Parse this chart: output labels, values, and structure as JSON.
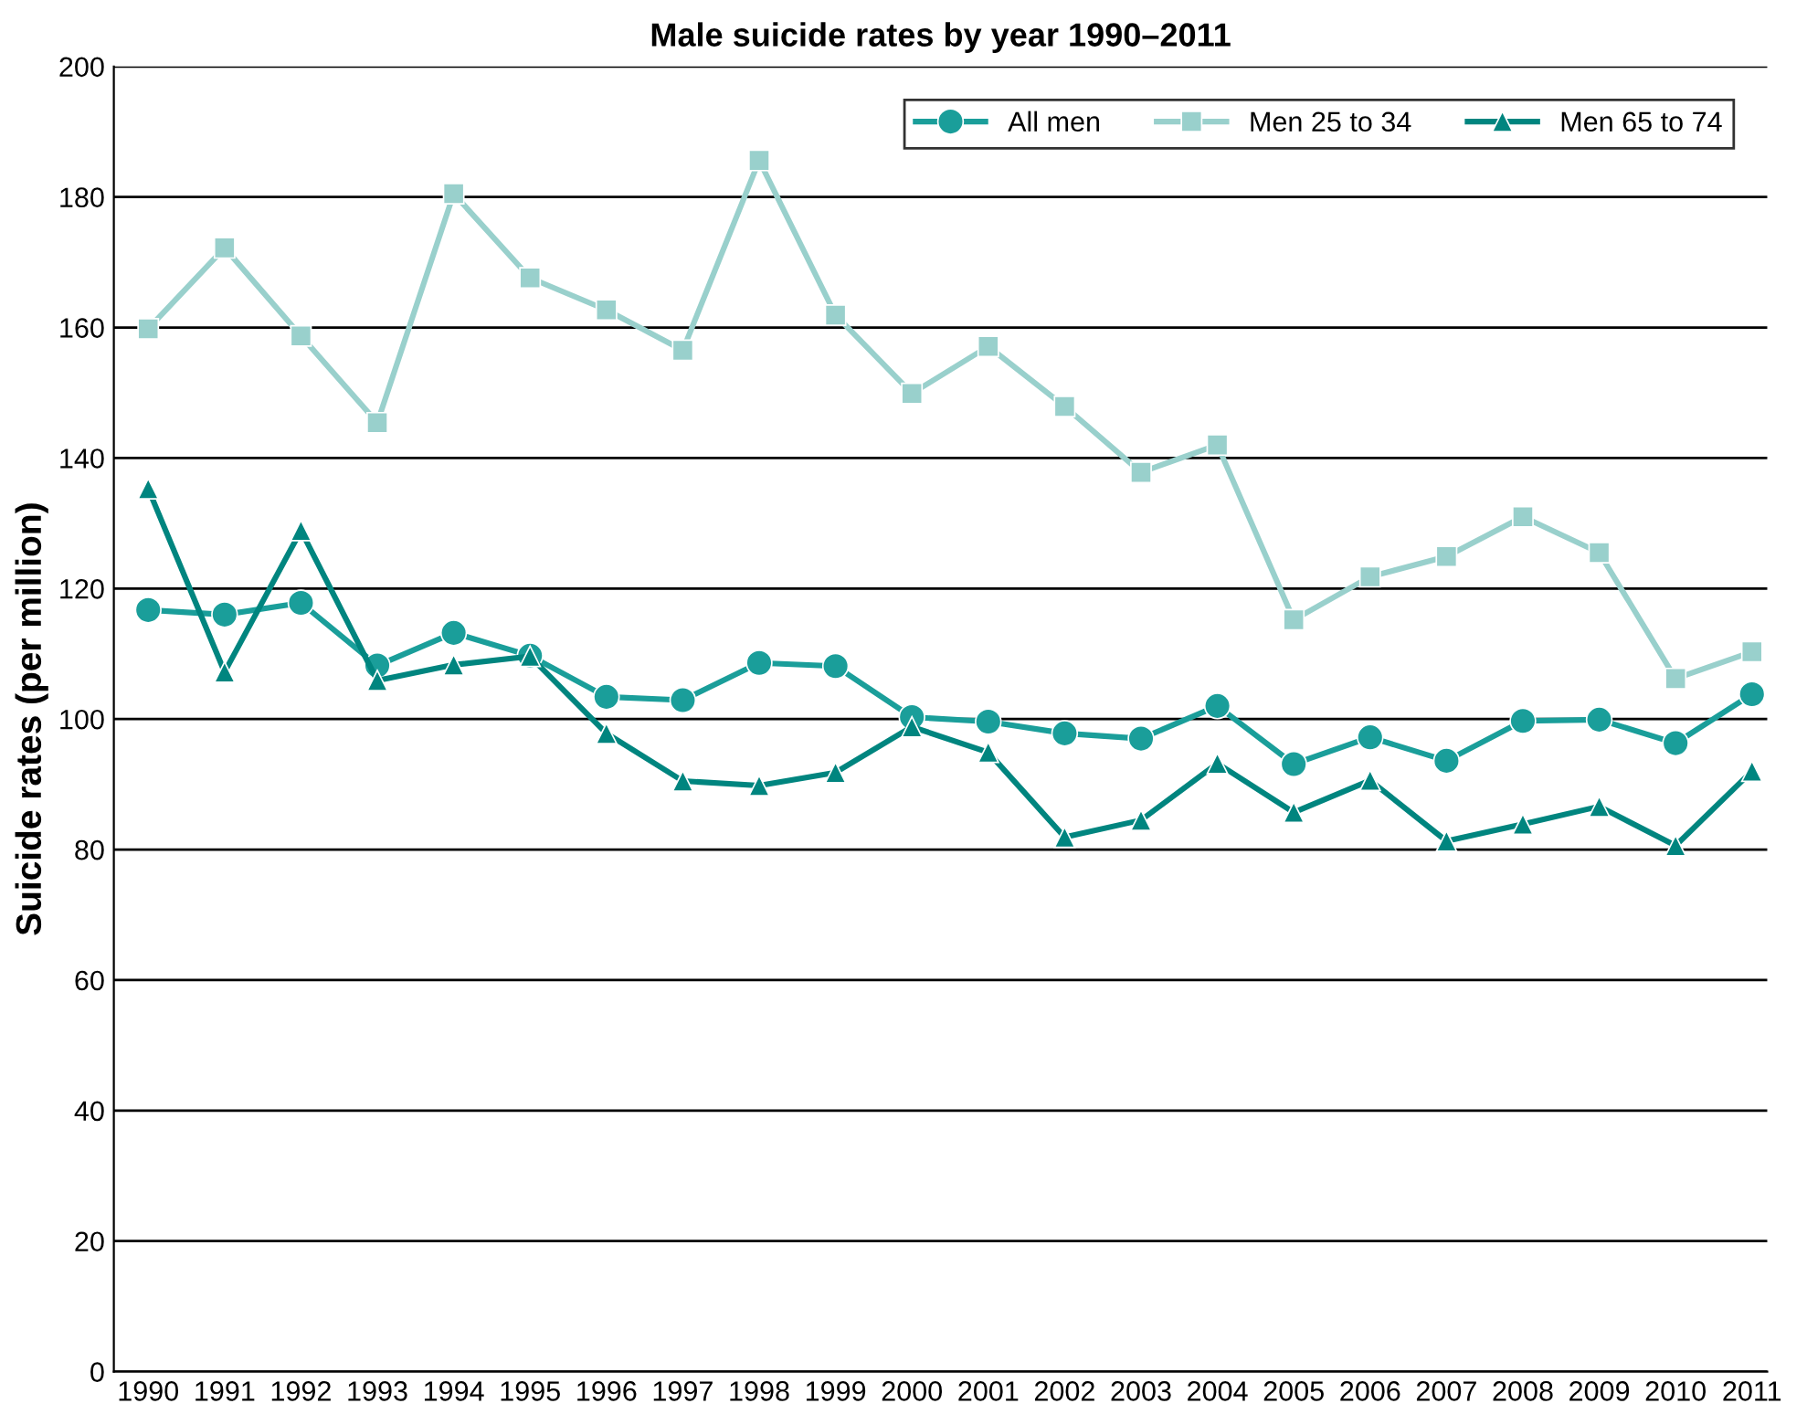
{
  "chart_data": {
    "type": "line",
    "title": "Male suicide rates by year 1990–2011",
    "ylabel": "Suicide rates (per million)",
    "categories": [
      "1990",
      "1991",
      "1992",
      "1993",
      "1994",
      "1995",
      "1996",
      "1997",
      "1998",
      "1999",
      "2000",
      "2001",
      "2002",
      "2003",
      "2004",
      "2005",
      "2006",
      "2007",
      "2008",
      "2009",
      "2010",
      "2011"
    ],
    "series": [
      {
        "name": "All men",
        "color": "#1a9e9a",
        "marker": "circle",
        "values": [
          116.7,
          116.0,
          117.8,
          108.2,
          113.2,
          109.7,
          103.4,
          102.9,
          108.6,
          108.1,
          100.3,
          99.6,
          97.8,
          97.0,
          102.0,
          93.1,
          97.2,
          93.6,
          99.7,
          99.9,
          96.3,
          103.8
        ]
      },
      {
        "name": "Men 25 to 34",
        "color": "#99d0cc",
        "marker": "square",
        "values": [
          159.8,
          172.2,
          158.7,
          145.4,
          180.5,
          167.6,
          162.7,
          156.5,
          185.6,
          161.9,
          149.9,
          157.1,
          147.9,
          137.8,
          142.0,
          115.2,
          121.8,
          124.9,
          131.0,
          125.5,
          106.2,
          110.3
        ]
      },
      {
        "name": "Men 65 to 74",
        "color": "#00857f",
        "marker": "triangle",
        "values": [
          135.3,
          107.2,
          128.9,
          105.9,
          108.3,
          109.6,
          97.8,
          90.5,
          89.8,
          91.8,
          98.8,
          94.9,
          81.9,
          84.5,
          93.2,
          85.7,
          90.6,
          81.3,
          83.9,
          86.6,
          80.6,
          92.0
        ]
      }
    ],
    "ylim": [
      0,
      200
    ],
    "yticks": [
      0,
      20,
      40,
      60,
      80,
      100,
      120,
      140,
      160,
      180,
      200
    ],
    "grid": "y",
    "legend": "top right",
    "line_style": "solid"
  }
}
